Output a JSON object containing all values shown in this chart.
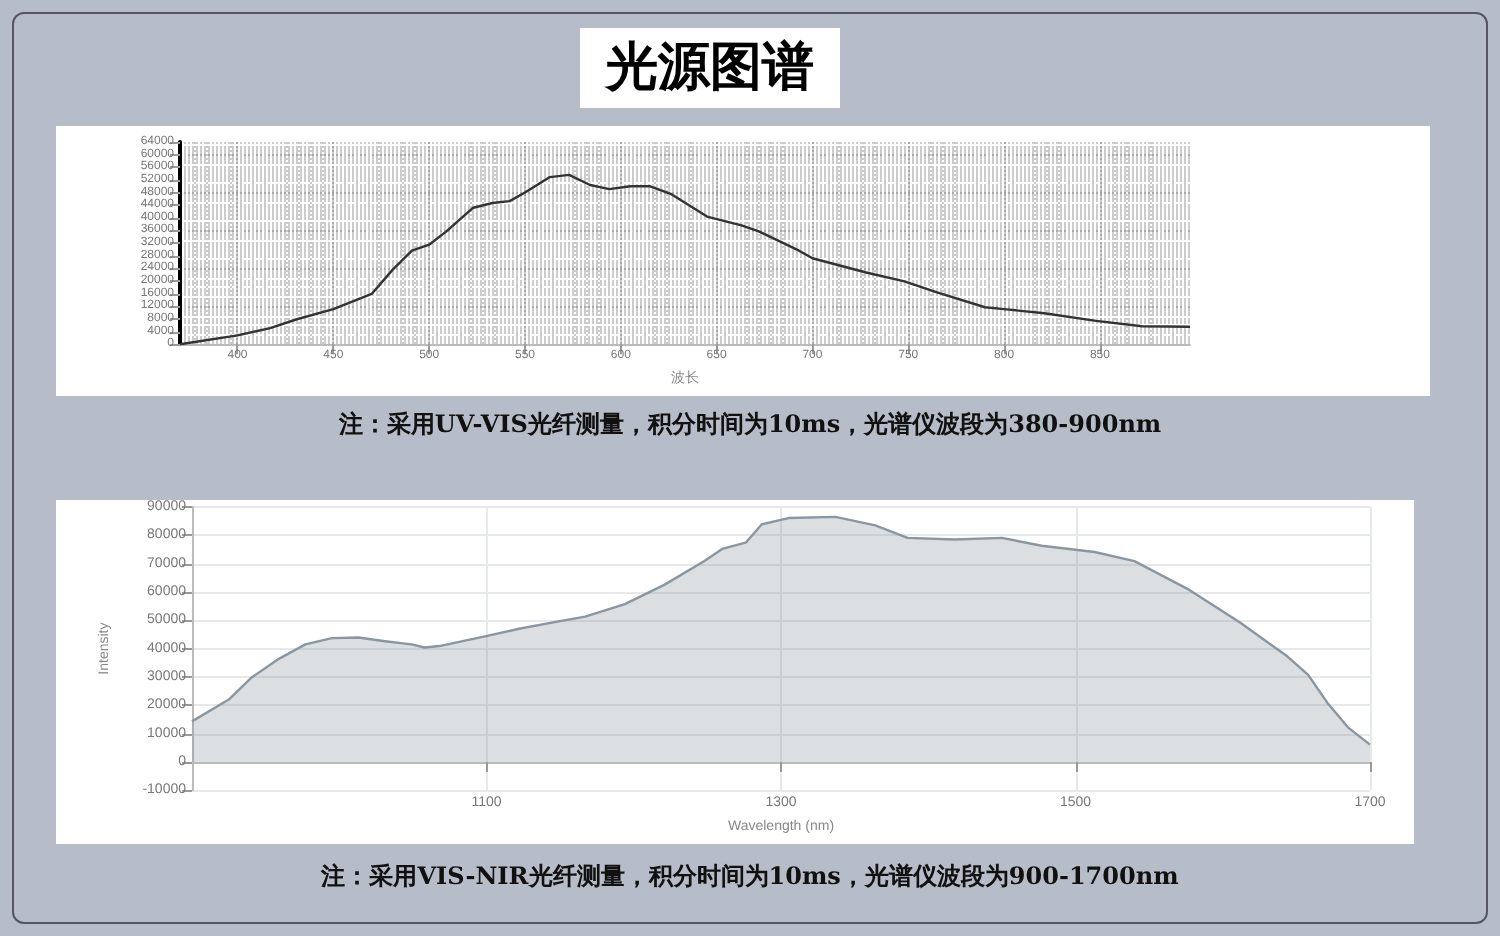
{
  "chart_data": [
    {
      "type": "line",
      "title": "光源图谱",
      "xlabel": "波长",
      "annotations": [
        "注：采用UV-VIS光纤测量，积分时间为10ms，光谱仪波段为380-900nm"
      ],
      "xlim": [
        370,
        897
      ],
      "xticks": [
        400,
        450,
        500,
        550,
        600,
        650,
        700,
        750,
        800,
        850
      ],
      "ylim": [
        0,
        64000
      ],
      "yticks": [
        0,
        4000,
        8000,
        12000,
        16000,
        20000,
        24000,
        28000,
        32000,
        36000,
        40000,
        44000,
        48000,
        52000,
        56000,
        60000,
        64000
      ],
      "grid": true,
      "series": [
        {
          "color": "#333333",
          "x": [
            370,
            400,
            417,
            431,
            450,
            470,
            481,
            491,
            500,
            509,
            523,
            533,
            542,
            550,
            563,
            573,
            584,
            594,
            605,
            615,
            626,
            645,
            663,
            672,
            693,
            700,
            728,
            748,
            765,
            790,
            800,
            821,
            848,
            872,
            897
          ],
          "values": [
            0,
            2800,
            5100,
            7900,
            11100,
            15900,
            23600,
            29600,
            31500,
            35700,
            43200,
            44700,
            45300,
            48000,
            52900,
            53600,
            50400,
            49100,
            50000,
            50000,
            47600,
            40400,
            37600,
            35700,
            29600,
            27200,
            22700,
            19900,
            16400,
            11700,
            11100,
            9800,
            7400,
            5700,
            5500
          ]
        }
      ]
    },
    {
      "type": "area",
      "xlabel": "Wavelength (nm)",
      "ylabel": "Intensity",
      "annotations": [
        "注：采用VIS-NIR光纤测量，积分时间为10ms，光谱仪波段为900-1700nm"
      ],
      "xlim": [
        900,
        1700
      ],
      "xticks": [
        1100,
        1300,
        1500,
        1700
      ],
      "ylim": [
        -10000,
        90000
      ],
      "yticks": [
        -10000,
        0,
        10000,
        20000,
        30000,
        40000,
        50000,
        60000,
        70000,
        80000,
        90000
      ],
      "grid": true,
      "series": [
        {
          "color": "#8a96a0",
          "x": [
            900,
            925,
            940,
            958,
            977,
            995,
            1013,
            1031,
            1049,
            1058,
            1068,
            1099,
            1122,
            1149,
            1167,
            1194,
            1221,
            1248,
            1260,
            1276,
            1287,
            1305,
            1337,
            1364,
            1386,
            1418,
            1450,
            1477,
            1513,
            1540,
            1576,
            1612,
            1644,
            1658,
            1671,
            1685,
            1700
          ],
          "values": [
            14300,
            22000,
            29600,
            36100,
            41500,
            43700,
            43900,
            42600,
            41500,
            40400,
            40900,
            44300,
            47000,
            49600,
            51300,
            55700,
            62600,
            70900,
            75200,
            77400,
            83900,
            86100,
            86500,
            83500,
            79100,
            78500,
            79100,
            76300,
            74100,
            70900,
            61100,
            49100,
            37200,
            30700,
            20900,
            12200,
            6100
          ]
        }
      ]
    }
  ]
}
